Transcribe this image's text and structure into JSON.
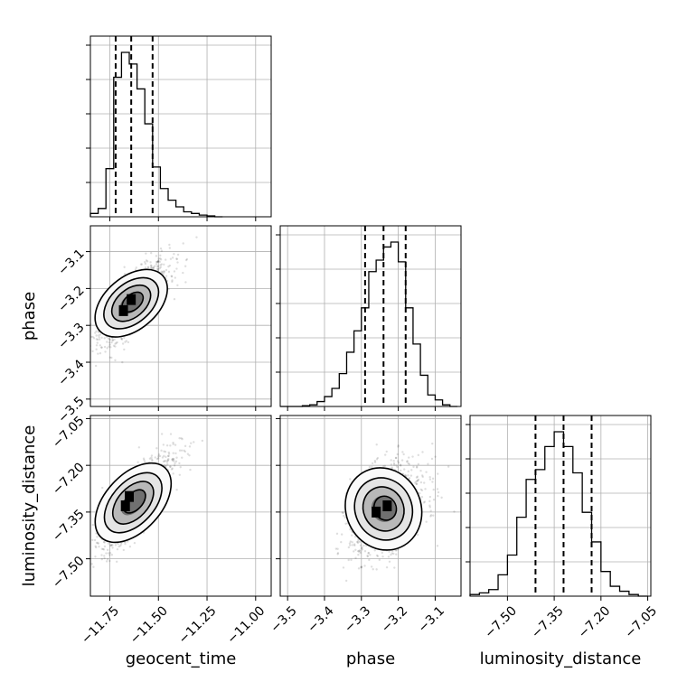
{
  "chart_data": {
    "type": "corner",
    "parameters": [
      {
        "name": "geocent_time",
        "label": "geocent_time",
        "range": [
          -11.85,
          -10.92
        ],
        "ticks": [
          -11.75,
          -11.5,
          -11.25,
          -11.0
        ],
        "tick_labels": [
          "−11.75",
          "−11.50",
          "−11.25",
          "−11.00"
        ],
        "quantiles": [
          -11.72,
          -11.64,
          -11.53
        ]
      },
      {
        "name": "phase",
        "label": "phase",
        "range": [
          -3.52,
          -3.03
        ],
        "ticks": [
          -3.5,
          -3.4,
          -3.3,
          -3.2,
          -3.1
        ],
        "tick_labels": [
          "−3.5",
          "−3.4",
          "−3.3",
          "−3.2",
          "−3.1"
        ],
        "quantiles": [
          -3.29,
          -3.24,
          -3.18
        ]
      },
      {
        "name": "luminosity_distance",
        "label": "luminosity_distance",
        "range": [
          -7.62,
          -7.04
        ],
        "ticks": [
          -7.5,
          -7.35,
          -7.2,
          -7.05
        ],
        "tick_labels": [
          "−7.50",
          "−7.35",
          "−7.20",
          "−7.05"
        ],
        "quantiles": [
          -7.41,
          -7.32,
          -7.23
        ]
      }
    ],
    "histograms": [
      {
        "parameter": "geocent_time",
        "bin_edges": [
          -11.85,
          -11.81,
          -11.77,
          -11.73,
          -11.69,
          -11.65,
          -11.61,
          -11.57,
          -11.53,
          -11.49,
          -11.45,
          -11.41,
          -11.37,
          -11.33,
          -11.29,
          -11.25,
          -11.21,
          -11.17
        ],
        "counts": [
          0.02,
          0.05,
          0.29,
          0.84,
          0.99,
          0.92,
          0.77,
          0.56,
          0.3,
          0.17,
          0.1,
          0.06,
          0.03,
          0.02,
          0.01,
          0.005,
          0.0
        ]
      },
      {
        "parameter": "phase",
        "bin_edges": [
          -3.52,
          -3.5,
          -3.48,
          -3.46,
          -3.44,
          -3.42,
          -3.4,
          -3.38,
          -3.36,
          -3.34,
          -3.32,
          -3.3,
          -3.28,
          -3.26,
          -3.24,
          -3.22,
          -3.2,
          -3.18,
          -3.16,
          -3.14,
          -3.12,
          -3.1,
          -3.08,
          -3.06,
          -3.04
        ],
        "counts": [
          0.0,
          0.0,
          0.0,
          0.005,
          0.01,
          0.03,
          0.06,
          0.11,
          0.2,
          0.33,
          0.46,
          0.6,
          0.82,
          0.89,
          0.97,
          1.0,
          0.88,
          0.6,
          0.38,
          0.19,
          0.07,
          0.04,
          0.01,
          0.0
        ]
      },
      {
        "parameter": "luminosity_distance",
        "bin_edges": [
          -7.62,
          -7.59,
          -7.56,
          -7.53,
          -7.5,
          -7.47,
          -7.44,
          -7.41,
          -7.38,
          -7.35,
          -7.32,
          -7.29,
          -7.26,
          -7.23,
          -7.2,
          -7.17,
          -7.14,
          -7.11,
          -7.08,
          -7.05
        ],
        "counts": [
          0.01,
          0.02,
          0.04,
          0.13,
          0.25,
          0.48,
          0.71,
          0.77,
          0.91,
          1.0,
          0.91,
          0.75,
          0.51,
          0.33,
          0.15,
          0.06,
          0.03,
          0.01,
          0.0
        ]
      }
    ],
    "pairs": [
      {
        "x": "geocent_time",
        "y": "phase",
        "center": [
          -11.64,
          -3.24
        ],
        "sigma": [
          0.08,
          0.05
        ],
        "correlation": 0.72,
        "peak_cells": [
          [
            -11.68,
            -3.26
          ],
          [
            -11.64,
            -3.23
          ]
        ]
      },
      {
        "x": "geocent_time",
        "y": "luminosity_distance",
        "center": [
          -11.63,
          -7.32
        ],
        "sigma": [
          0.08,
          0.07
        ],
        "correlation": 0.78,
        "peak_cells": [
          [
            -11.67,
            -7.33
          ],
          [
            -11.65,
            -7.3
          ]
        ]
      },
      {
        "x": "phase",
        "y": "luminosity_distance",
        "center": [
          -3.24,
          -7.34
        ],
        "sigma": [
          0.045,
          0.07
        ],
        "correlation": 0.35,
        "peak_cells": [
          [
            -3.26,
            -7.35
          ],
          [
            -3.23,
            -7.33
          ]
        ]
      }
    ],
    "grid": true,
    "legend": "none"
  }
}
